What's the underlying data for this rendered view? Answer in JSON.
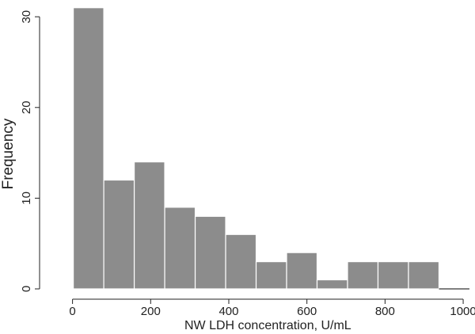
{
  "chart_data": {
    "type": "bar",
    "title": "",
    "xlabel": "NW LDH concentration, U/mL",
    "ylabel": "Frequency",
    "xlim": [
      -60,
      1010
    ],
    "ylim": [
      0,
      31.5
    ],
    "x_ticks": [
      0,
      200,
      400,
      600,
      800,
      1000
    ],
    "y_ticks": [
      0,
      10,
      20,
      30
    ],
    "bin_width": 78,
    "bin_edges": [
      2,
      80,
      158,
      236,
      314,
      392,
      470,
      548,
      626,
      704,
      782,
      860,
      938
    ],
    "values": [
      31,
      12,
      14,
      9,
      8,
      6,
      3,
      4,
      1,
      3,
      3,
      3
    ],
    "bar_color": "#8c8c8c",
    "grid": false
  }
}
